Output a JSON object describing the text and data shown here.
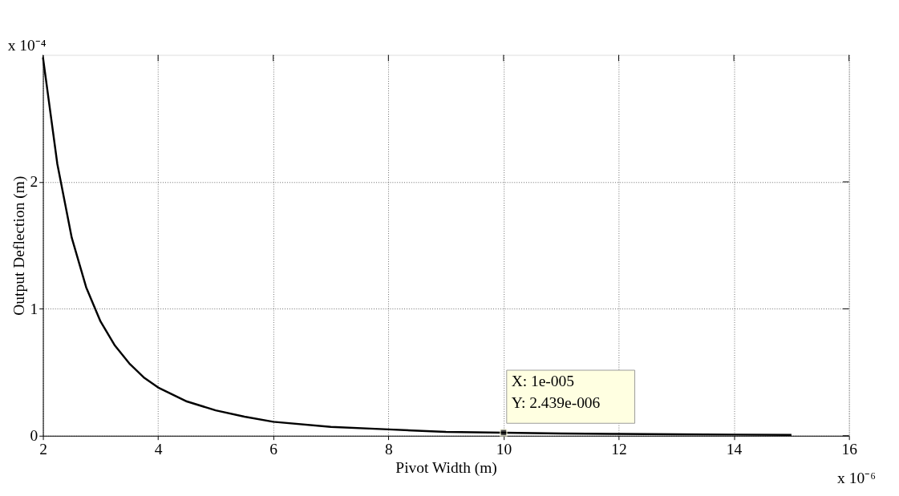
{
  "chart_data": {
    "type": "line",
    "xlabel": "Pivot Width (m)",
    "ylabel": "Output Deflection (m)",
    "x": [
      2,
      2.25,
      2.5,
      2.75,
      3,
      3.25,
      3.5,
      3.75,
      4,
      4.5,
      5,
      5.5,
      6,
      7,
      8,
      9,
      10,
      11,
      12,
      13,
      14,
      15
    ],
    "series": [
      {
        "color": "#000000",
        "values": [
          2.98,
          2.14,
          1.56,
          1.17,
          0.9,
          0.71,
          0.57,
          0.46,
          0.38,
          0.27,
          0.2,
          0.15,
          0.11,
          0.07,
          0.05,
          0.03,
          0.024,
          0.018,
          0.014,
          0.011,
          0.009,
          0.007
        ]
      }
    ],
    "xlim": [
      2,
      16
    ],
    "xticks": [
      2,
      4,
      6,
      8,
      10,
      12,
      14,
      16
    ],
    "ylim": [
      0,
      3
    ],
    "yticks": [
      0,
      1,
      2
    ],
    "grid": true,
    "marker": "none",
    "line_style": "solid",
    "annotations": [
      "x 10⁻⁴",
      "x 10⁻⁶",
      {
        "text": "X: 1e-005\nY: 2.439e-006",
        "x": 10,
        "y": 0.02439
      }
    ]
  }
}
